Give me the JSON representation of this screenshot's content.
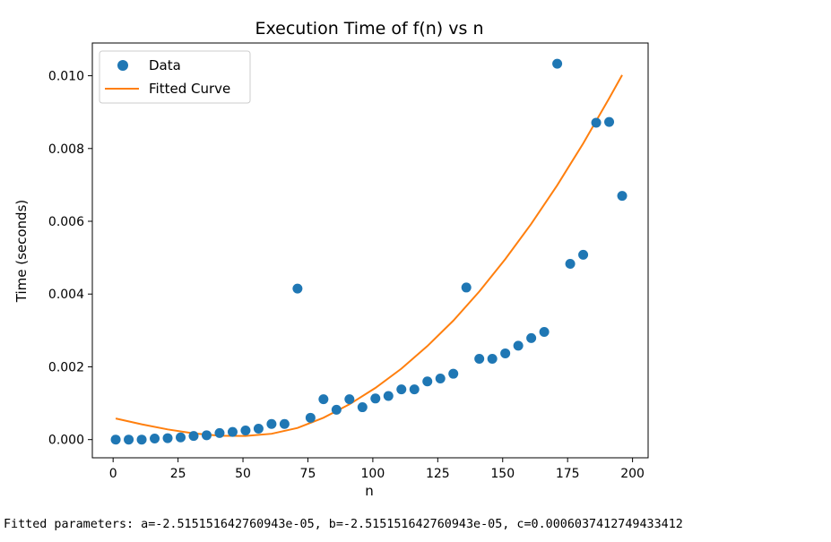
{
  "chart_data": {
    "type": "scatter",
    "title": "Execution Time of f(n) vs n",
    "xlabel": "n",
    "ylabel": "Time (seconds)",
    "xlim": [
      -8,
      206
    ],
    "ylim": [
      -0.0005,
      0.0109
    ],
    "xticks": [
      0,
      25,
      50,
      75,
      100,
      125,
      150,
      175,
      200
    ],
    "yticks": [
      0.0,
      0.002,
      0.004,
      0.006,
      0.008,
      0.01
    ],
    "xtick_labels": [
      "0",
      "25",
      "50",
      "75",
      "100",
      "125",
      "150",
      "175",
      "200"
    ],
    "ytick_labels": [
      "0.000",
      "0.002",
      "0.004",
      "0.006",
      "0.008",
      "0.010"
    ],
    "grid": false,
    "legend_position": "top-left",
    "series": [
      {
        "name": "Data",
        "kind": "scatter",
        "color": "#1f77b4",
        "x": [
          1,
          6,
          11,
          16,
          21,
          26,
          31,
          36,
          41,
          46,
          51,
          56,
          61,
          66,
          71,
          76,
          81,
          86,
          91,
          96,
          101,
          106,
          111,
          116,
          121,
          126,
          131,
          136,
          141,
          146,
          151,
          156,
          161,
          166,
          171,
          176,
          181,
          186,
          191,
          196
        ],
        "y": [
          0.0,
          0.0,
          0.0,
          3e-05,
          4e-05,
          6e-05,
          0.0001,
          0.00012,
          0.00018,
          0.00021,
          0.00025,
          0.0003,
          0.00043,
          0.00043,
          0.00415,
          0.0006,
          0.00111,
          0.00082,
          0.00111,
          0.00089,
          0.00113,
          0.0012,
          0.00138,
          0.00138,
          0.0016,
          0.00168,
          0.00181,
          0.00418,
          0.00222,
          0.00222,
          0.00237,
          0.00258,
          0.00279,
          0.00296,
          0.01033,
          0.00483,
          0.00508,
          0.00871,
          0.00873,
          0.0067
        ]
      },
      {
        "name": "Fitted Curve",
        "kind": "line",
        "color": "#ff7f0e",
        "x": [
          1,
          11,
          21,
          31,
          41,
          51,
          61,
          71,
          81,
          91,
          101,
          111,
          121,
          131,
          141,
          151,
          161,
          171,
          181,
          191,
          196
        ],
        "y": [
          0.00058,
          0.00042,
          0.00028,
          0.00017,
          0.000105,
          0.0001,
          0.00016,
          0.00032,
          0.0006,
          0.00097,
          0.00142,
          0.00195,
          0.00257,
          0.00327,
          0.00407,
          0.00496,
          0.00593,
          0.00699,
          0.00814,
          0.00938,
          0.01002
        ]
      }
    ]
  },
  "output_text": "Fitted parameters: a=-2.515151642760943e-05, b=-2.515151642760943e-05, c=0.0006037412749433412"
}
